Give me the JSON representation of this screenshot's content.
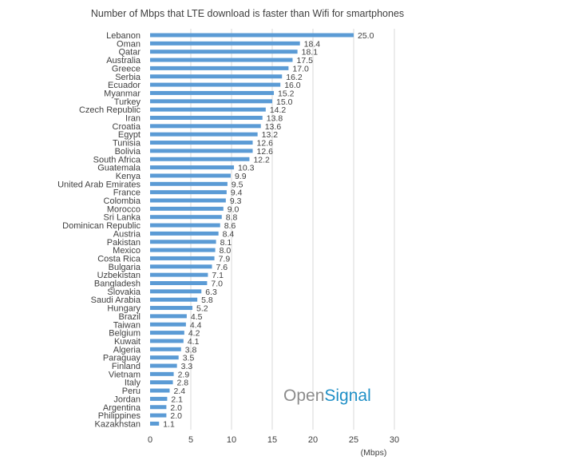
{
  "chart_data": {
    "type": "bar",
    "orientation": "horizontal",
    "title": "Number of Mbps that LTE download is faster than Wifi for smartphones",
    "unit_label": "(Mbps)",
    "categories": [
      "Lebanon",
      "Oman",
      "Qatar",
      "Australia",
      "Greece",
      "Serbia",
      "Ecuador",
      "Myanmar",
      "Turkey",
      "Czech Republic",
      "Iran",
      "Croatia",
      "Egypt",
      "Tunisia",
      "Bolivia",
      "South Africa",
      "Guatemala",
      "Kenya",
      "United Arab Emirates",
      "France",
      "Colombia",
      "Morocco",
      "Sri Lanka",
      "Dominican Republic",
      "Austria",
      "Pakistan",
      "Mexico",
      "Costa Rica",
      "Bulgaria",
      "Uzbekistan",
      "Bangladesh",
      "Slovakia",
      "Saudi Arabia",
      "Hungary",
      "Brazil",
      "Taiwan",
      "Belgium",
      "Kuwait",
      "Algeria",
      "Paraguay",
      "Finland",
      "Vietnam",
      "Italy",
      "Peru",
      "Jordan",
      "Argentina",
      "Philippines",
      "Kazakhstan"
    ],
    "values": [
      25.0,
      18.4,
      18.1,
      17.5,
      17.0,
      16.2,
      16.0,
      15.2,
      15.0,
      14.2,
      13.8,
      13.6,
      13.2,
      12.6,
      12.6,
      12.2,
      10.3,
      9.9,
      9.5,
      9.4,
      9.3,
      9.0,
      8.8,
      8.6,
      8.4,
      8.1,
      8.0,
      7.9,
      7.6,
      7.1,
      7.0,
      6.3,
      5.8,
      5.2,
      4.5,
      4.4,
      4.2,
      4.1,
      3.8,
      3.5,
      3.3,
      2.9,
      2.8,
      2.4,
      2.1,
      2.0,
      2.0,
      1.1
    ],
    "value_labels": [
      "25.0",
      "18.4",
      "18.1",
      "17.5",
      "17.0",
      "16.2",
      "16.0",
      "15.2",
      "15.0",
      "14.2",
      "13.8",
      "13.6",
      "13.2",
      "12.6",
      "12.6",
      "12.2",
      "10.3",
      "9.9",
      "9.5",
      "9.4",
      "9.3",
      "9.0",
      "8.8",
      "8.6",
      "8.4",
      "8.1",
      "8.0",
      "7.9",
      "7.6",
      "7.1",
      "7.0",
      "6.3",
      "5.8",
      "5.2",
      "4.5",
      "4.4",
      "4.2",
      "4.1",
      "3.8",
      "3.5",
      "3.3",
      "2.9",
      "2.8",
      "2.4",
      "2.1",
      "2.0",
      "2.0",
      "1.1"
    ],
    "xlim": [
      0,
      30
    ],
    "xticks": [
      "0",
      "5",
      "10",
      "15",
      "20",
      "25",
      "30"
    ],
    "grid": true,
    "bar_color": "#5b9bd5"
  },
  "brand": {
    "part1": "Open",
    "part2": "Signal",
    "color1": "#8c8c8c",
    "color2": "#1f8fc6"
  }
}
